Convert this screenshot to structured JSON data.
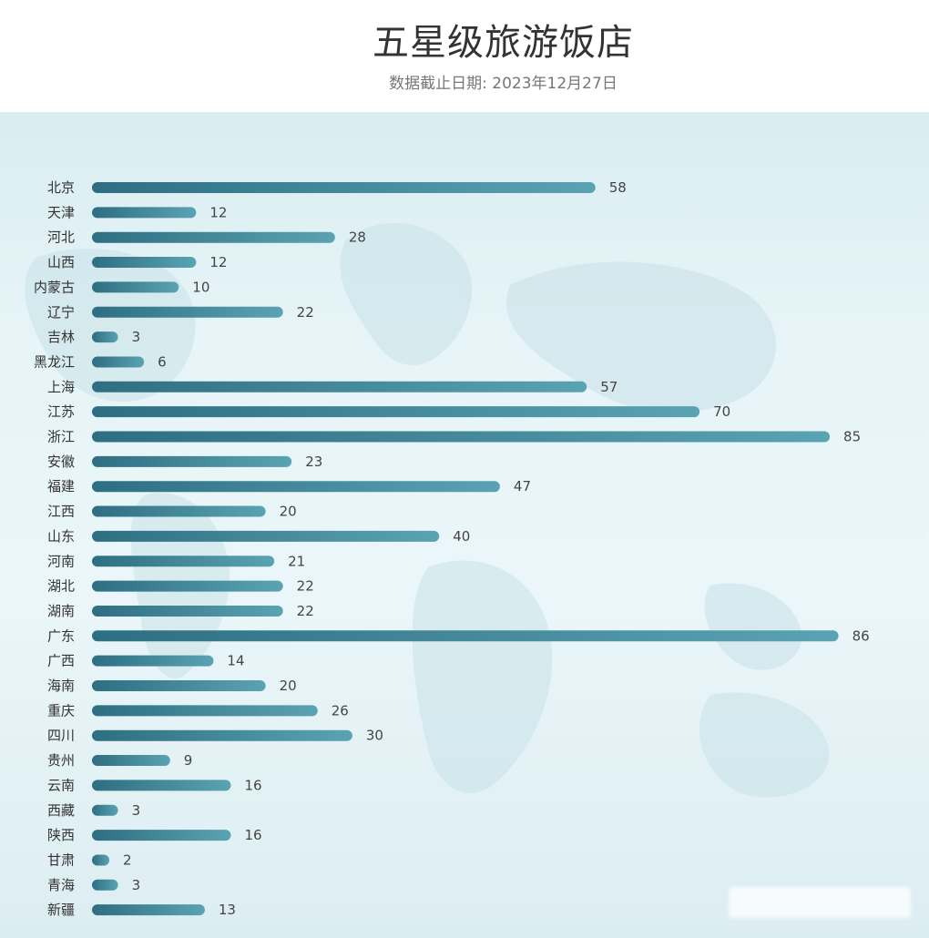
{
  "header": {
    "title": "五星级旅游饭店",
    "subtitle": "数据截止日期: 2023年12月27日"
  },
  "colors": {
    "bar_start": "#2e6e82",
    "bar_end": "#5aa3b2",
    "background": "#e3f2f5"
  },
  "chart_data": {
    "type": "bar",
    "orientation": "horizontal",
    "title": "五星级旅游饭店",
    "subtitle": "数据截止日期: 2023年12月27日",
    "xlabel": "",
    "ylabel": "",
    "xlim": [
      0,
      86
    ],
    "grid": false,
    "legend": "none",
    "categories": [
      "北京",
      "天津",
      "河北",
      "山西",
      "内蒙古",
      "辽宁",
      "吉林",
      "黑龙江",
      "上海",
      "江苏",
      "浙江",
      "安徽",
      "福建",
      "江西",
      "山东",
      "河南",
      "湖北",
      "湖南",
      "广东",
      "广西",
      "海南",
      "重庆",
      "四川",
      "贵州",
      "云南",
      "西藏",
      "陕西",
      "甘肃",
      "青海",
      "新疆"
    ],
    "values": [
      58,
      12,
      28,
      12,
      10,
      22,
      3,
      6,
      57,
      70,
      85,
      23,
      47,
      20,
      40,
      21,
      22,
      22,
      86,
      14,
      20,
      26,
      30,
      9,
      16,
      3,
      16,
      2,
      3,
      13
    ]
  }
}
